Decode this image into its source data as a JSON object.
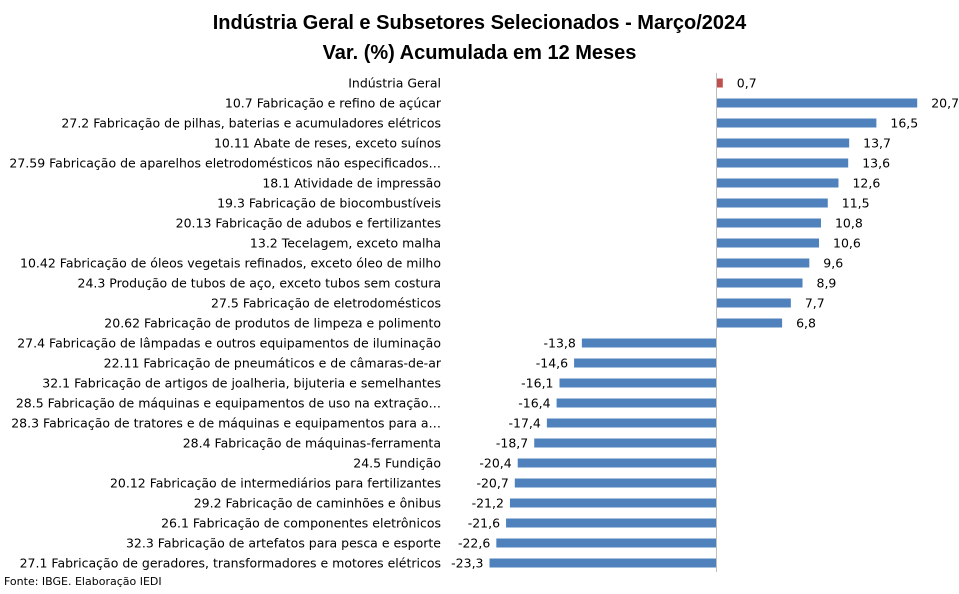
{
  "chart_data": {
    "type": "bar",
    "orientation": "horizontal",
    "title": "Indústria Geral e Subsetores Selecionados - Março/2024",
    "subtitle": "Var. (%) Acumulada em 12 Meses",
    "categories": [
      "Indústria Geral",
      "10.7 Fabricação e refino de açúcar",
      "27.2 Fabricação de pilhas, baterias e acumuladores elétricos",
      "10.11 Abate de reses, exceto suínos",
      "27.59 Fabricação de aparelhos eletrodomésticos não especificados…",
      "18.1 Atividade de impressão",
      "19.3 Fabricação de biocombustíveis",
      "20.13 Fabricação de adubos e fertilizantes",
      "13.2 Tecelagem, exceto malha",
      "10.42 Fabricação de óleos vegetais refinados, exceto óleo de milho",
      "24.3 Produção de tubos de aço, exceto tubos sem costura",
      "27.5 Fabricação de eletrodomésticos",
      "20.62 Fabricação de produtos de limpeza e polimento",
      "27.4 Fabricação de lâmpadas e outros equipamentos de iluminação",
      "22.11 Fabricação de pneumáticos e de câmaras-de-ar",
      "32.1 Fabricação de artigos de joalheria, bijuteria e semelhantes",
      "28.5 Fabricação de máquinas e equipamentos de uso na extração…",
      "28.3 Fabricação de tratores e de máquinas e equipamentos para a…",
      "28.4 Fabricação de máquinas-ferramenta",
      "24.5 Fundição",
      "20.12 Fabricação de intermediários para fertilizantes",
      "29.2 Fabricação de caminhões e ônibus",
      "26.1 Fabricação de componentes eletrônicos",
      "32.3 Fabricação de artefatos para pesca e esporte",
      "27.1 Fabricação de geradores, transformadores e motores elétricos"
    ],
    "values": [
      0.7,
      20.7,
      16.5,
      13.7,
      13.6,
      12.6,
      11.5,
      10.8,
      10.6,
      9.6,
      8.9,
      7.7,
      6.8,
      -13.8,
      -14.6,
      -16.1,
      -16.4,
      -17.4,
      -18.7,
      -20.4,
      -20.7,
      -21.2,
      -21.6,
      -22.6,
      -23.3
    ],
    "data_labels": [
      "0,7",
      "20,7",
      "16,5",
      "13,7",
      "13,6",
      "12,6",
      "11,5",
      "10,8",
      "10,6",
      "9,6",
      "8,9",
      "7,7",
      "6,8",
      "-13,8",
      "-14,6",
      "-16,1",
      "-16,4",
      "-17,4",
      "-18,7",
      "-20,4",
      "-20,7",
      "-21,2",
      "-21,6",
      "-22,6",
      "-23,3"
    ],
    "xlim": [
      -23.3,
      20.7
    ],
    "grid": false,
    "legend": "none",
    "colors": {
      "bar": "#4f81bd",
      "highlight": "#c0504d",
      "axis": "#bfbfbf"
    },
    "source": "Fonte: IBGE. Elaboração IEDI"
  }
}
